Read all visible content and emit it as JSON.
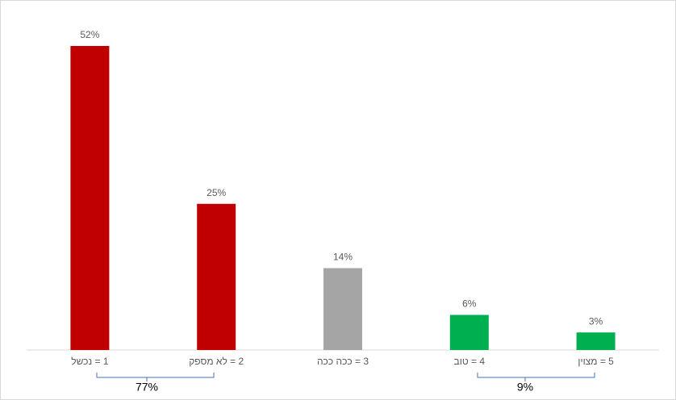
{
  "chart_data": {
    "type": "bar",
    "categories": [
      "1 = נכשל",
      "2 = לא מספק",
      "3 = ככה ככה",
      "4 = טוב",
      "5 = מצוין"
    ],
    "values": [
      52,
      25,
      14,
      6,
      3
    ],
    "value_labels": [
      "52%",
      "25%",
      "14%",
      "6%",
      "3%"
    ],
    "colors": [
      "#c00000",
      "#c00000",
      "#a5a5a5",
      "#00b050",
      "#00b050"
    ],
    "annotations": [
      "77%",
      "9%"
    ]
  }
}
